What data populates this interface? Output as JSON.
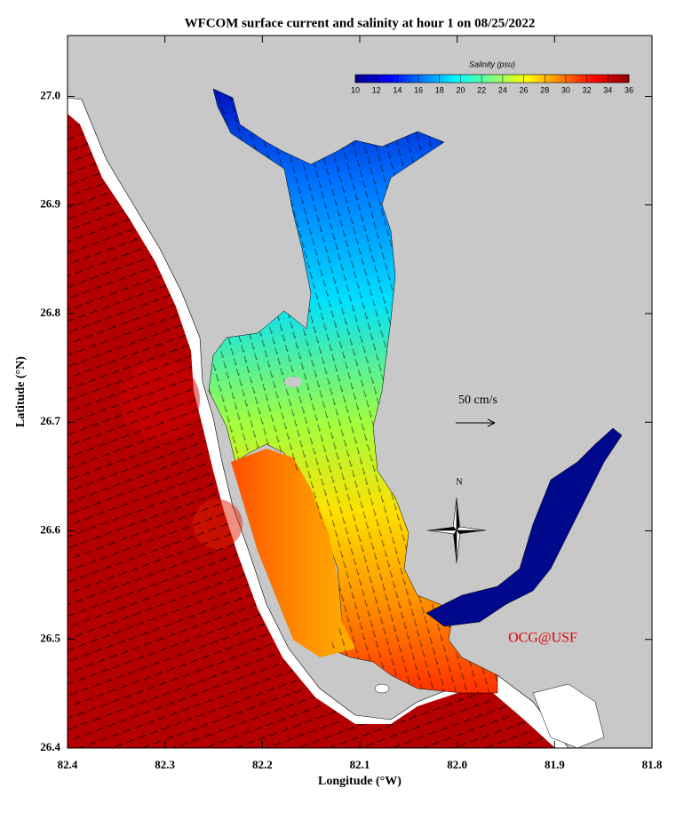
{
  "chart_data": {
    "type": "map",
    "title": "WFCOM surface current and salinity at hour 1 on 08/25/2022",
    "xlabel": "Longitude (°W)",
    "ylabel": "Latitude (°N)",
    "xlim": [
      82.4,
      81.8
    ],
    "ylim": [
      26.4,
      27.056
    ],
    "xticks": [
      82.4,
      82.3,
      82.2,
      82.1,
      {
        "value": 82,
        "label": "82.0"
      },
      81.9,
      81.8
    ],
    "yticks": [
      26.4,
      26.5,
      26.6,
      26.7,
      26.8,
      26.9,
      {
        "value": 27,
        "label": "27.0"
      }
    ],
    "colorbar": {
      "label": "Salinity (psu)",
      "lim": [
        10,
        36
      ],
      "ticks": [
        10,
        12,
        14,
        16,
        18,
        20,
        22,
        24,
        26,
        28,
        30,
        32,
        34,
        36
      ],
      "colors": [
        "#00008b",
        "#0000ff",
        "#0080ff",
        "#00ffff",
        "#80ff80",
        "#ffff00",
        "#ff8000",
        "#ff0000",
        "#8b0000"
      ]
    },
    "scale_label": "50 cm/s",
    "north_label": "N",
    "credit": "OCG@USF"
  }
}
